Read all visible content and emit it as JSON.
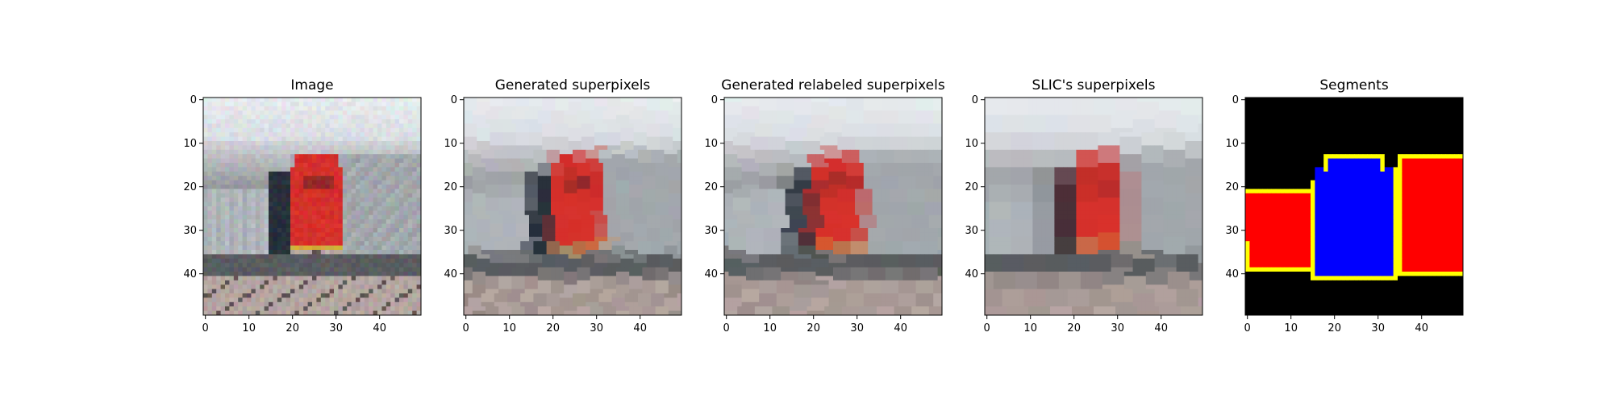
{
  "panels": [
    {
      "title": "Image",
      "kind": "image"
    },
    {
      "title": "Generated superpixels",
      "kind": "superpixels"
    },
    {
      "title": "Generated relabeled superpixels",
      "kind": "relabeled"
    },
    {
      "title": "SLIC's superpixels",
      "kind": "slic"
    },
    {
      "title": "Segments",
      "kind": "segments"
    }
  ],
  "axes": {
    "xlim": [
      0,
      50
    ],
    "ylim": [
      50,
      0
    ],
    "xticks": [
      0,
      10,
      20,
      30,
      40
    ],
    "yticks": [
      0,
      10,
      20,
      30,
      40
    ]
  },
  "colors": {
    "sky": "#e6eaed",
    "hills": "#8f9296",
    "locomotive": "#d6302b",
    "gray_car": "#a8aeb2",
    "ground": "#5a5c60",
    "gravel": "#b9aca6",
    "segment_background": "#000000",
    "segment_left_right": "#ff0000",
    "segment_center": "#0000ff",
    "segment_boundary": "#ffff00"
  }
}
